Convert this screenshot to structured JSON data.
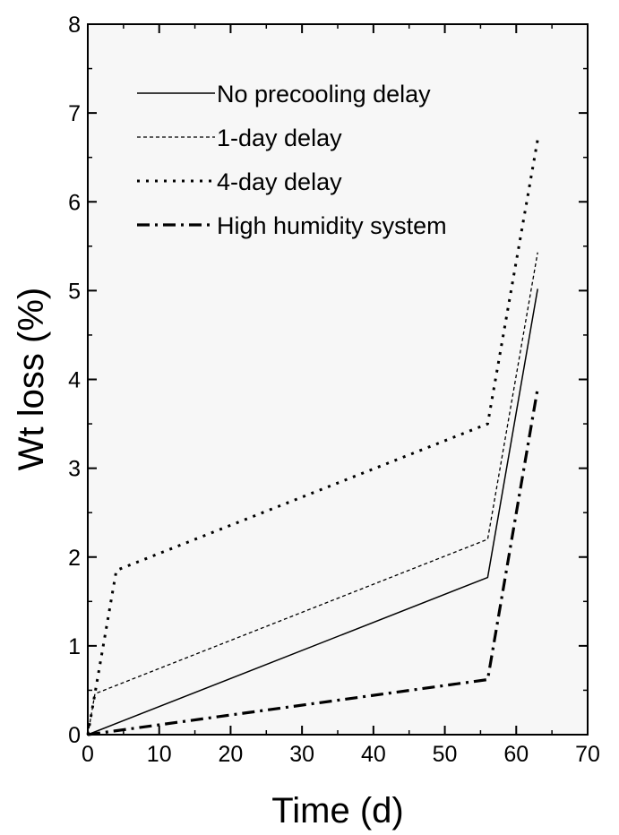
{
  "chart_data": {
    "type": "line",
    "xlabel": "Time (d)",
    "ylabel": "Wt loss (%)",
    "xlim": [
      0,
      70
    ],
    "ylim": [
      0,
      8
    ],
    "xticks": [
      0,
      10,
      20,
      30,
      40,
      50,
      60,
      70
    ],
    "yticks": [
      0,
      1,
      2,
      3,
      4,
      5,
      6,
      7,
      8
    ],
    "grid": false,
    "legend_position": "top-right",
    "series": [
      {
        "name": "No precooling delay",
        "style": "solid",
        "x": [
          0,
          56,
          63
        ],
        "y": [
          0,
          1.77,
          5.02
        ]
      },
      {
        "name": "1-day delay",
        "style": "dashed",
        "x": [
          0,
          1,
          56,
          63
        ],
        "y": [
          0,
          0.46,
          2.2,
          5.43
        ]
      },
      {
        "name": "4-day delay",
        "style": "dotted",
        "x": [
          0,
          4,
          56,
          63
        ],
        "y": [
          0,
          1.85,
          3.5,
          6.7
        ]
      },
      {
        "name": "High humidity system",
        "style": "dashdot",
        "x": [
          0,
          56,
          63
        ],
        "y": [
          0,
          0.62,
          3.9
        ]
      }
    ]
  }
}
